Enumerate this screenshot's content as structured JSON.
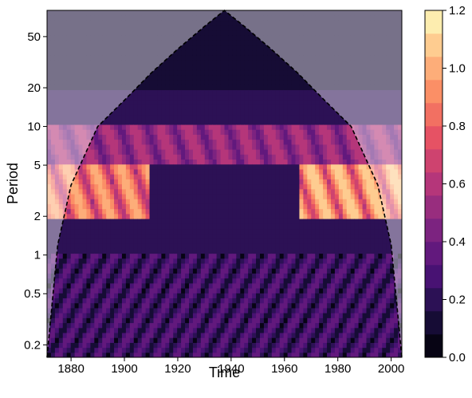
{
  "chart_data": {
    "type": "heatmap",
    "title": "",
    "xlabel": "Time",
    "ylabel": "Period",
    "xlim": [
      1871,
      2004
    ],
    "ylim": [
      0.16,
      80
    ],
    "y_scale": "log",
    "x_ticks": [
      1880,
      1900,
      1920,
      1940,
      1960,
      1980,
      2000
    ],
    "y_ticks": [
      0.2,
      0.5,
      1,
      2,
      5,
      10,
      20,
      50
    ],
    "colorbar": {
      "colormap": "magma",
      "range": [
        0,
        1.2
      ],
      "levels": 15,
      "ticks": [
        0.0,
        0.2,
        0.4,
        0.6,
        0.8,
        1.0,
        1.2
      ],
      "tick_labels": [
        "0.0",
        "0.2",
        "0.4",
        "0.6",
        "0.8",
        "1.0",
        "1.2"
      ]
    },
    "cone_of_influence": {
      "style": "dashed",
      "color": "#000000",
      "x": [
        1871,
        1875,
        1880,
        1890,
        1900,
        1910,
        1920,
        1930,
        1937.5,
        1945,
        1955,
        1965,
        1975,
        1985,
        1995,
        2000,
        2004
      ],
      "period": [
        0.16,
        1.2,
        3.5,
        10,
        16,
        26,
        40,
        60,
        80,
        60,
        40,
        26,
        16,
        10,
        3.5,
        1.2,
        0.16
      ]
    },
    "power_bands": [
      {
        "period_range": [
          2,
          5
        ],
        "x_range": [
          1871,
          1910
        ],
        "level": 1.0
      },
      {
        "period_range": [
          2,
          5
        ],
        "x_range": [
          1965,
          2004
        ],
        "level": 1.1
      },
      {
        "period_range": [
          5,
          10
        ],
        "x_range": [
          1871,
          2004
        ],
        "level": 0.6
      },
      {
        "period_range": [
          0.16,
          1
        ],
        "x_range": [
          1871,
          2004
        ],
        "level": 0.2
      },
      {
        "period_range": [
          20,
          80
        ],
        "x_range": [
          1871,
          2004
        ],
        "level": 0.05
      }
    ]
  }
}
